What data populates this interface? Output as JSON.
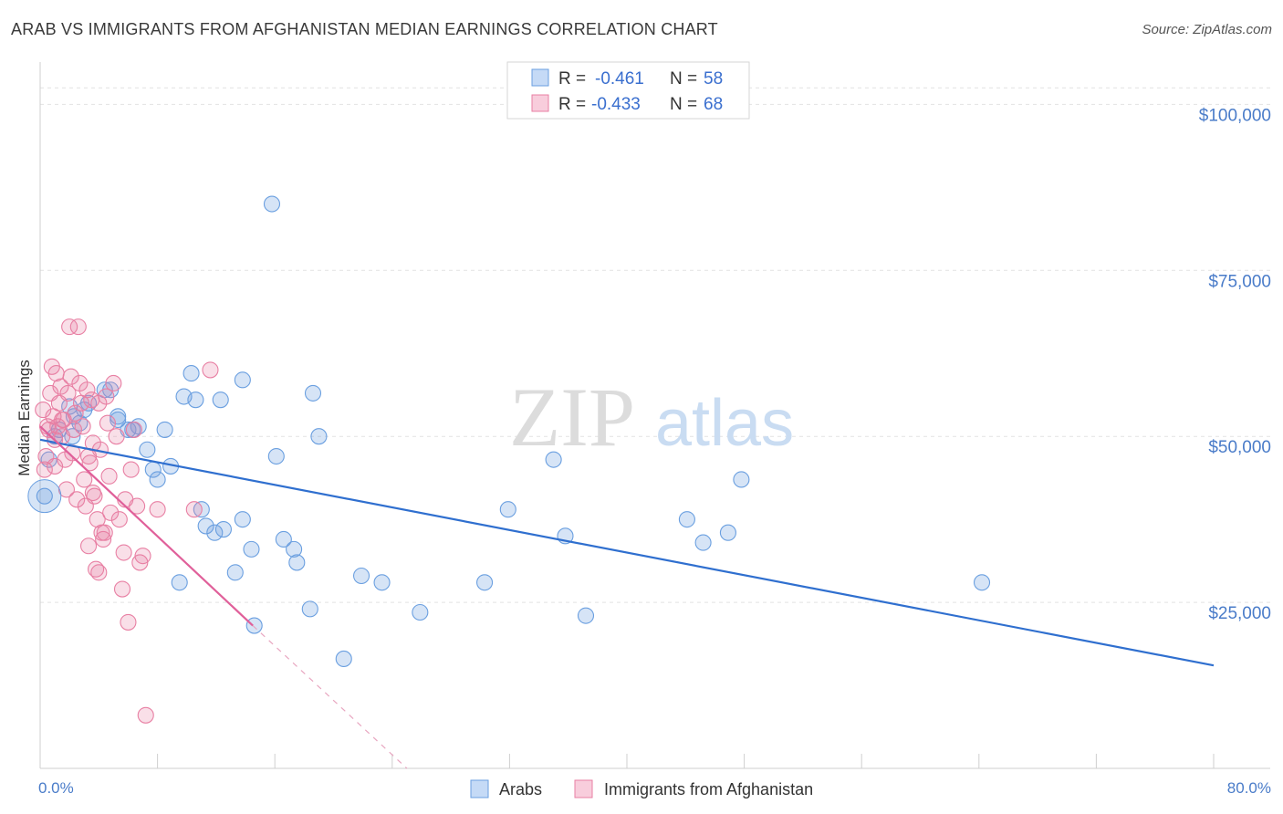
{
  "title": "ARAB VS IMMIGRANTS FROM AFGHANISTAN MEDIAN EARNINGS CORRELATION CHART",
  "source": "Source: ZipAtlas.com",
  "watermark": {
    "zip": "ZIP",
    "atlas": "atlas"
  },
  "legend": {
    "rows": [
      {
        "r_label": "R =",
        "r_value": "-0.461",
        "n_label": "N =",
        "n_value": "58",
        "color": "#6a9fe0"
      },
      {
        "r_label": "R =",
        "r_value": "-0.433",
        "n_label": "N =",
        "n_value": "68",
        "color": "#e87fa3"
      }
    ]
  },
  "bottom_legend": [
    "Arabs",
    "Immigrants from Afghanistan"
  ],
  "chart_data": {
    "type": "scatter",
    "title": "ARAB VS IMMIGRANTS FROM AFGHANISTAN MEDIAN EARNINGS CORRELATION CHART",
    "xlabel": "",
    "ylabel": "Median Earnings",
    "xlim": [
      0,
      80
    ],
    "ylim": [
      0,
      105000
    ],
    "x_tick_labels": [
      "0.0%",
      "80.0%"
    ],
    "y_ticks": [
      25000,
      50000,
      75000,
      100000
    ],
    "y_tick_labels": [
      "$25,000",
      "$50,000",
      "$75,000",
      "$100,000"
    ],
    "grid": true,
    "legend_position": "top-center",
    "series": [
      {
        "name": "Arabs",
        "color": "#6a9fe0",
        "trend": {
          "x": [
            0,
            80
          ],
          "y": [
            49500,
            15500
          ]
        },
        "points": [
          [
            0.3,
            41000
          ],
          [
            0.6,
            46500
          ],
          [
            1.0,
            50000
          ],
          [
            1.3,
            51000
          ],
          [
            2.0,
            54500
          ],
          [
            2.3,
            53000
          ],
          [
            2.7,
            52000
          ],
          [
            3.3,
            55000
          ],
          [
            4.4,
            57000
          ],
          [
            4.8,
            57000
          ],
          [
            5.3,
            53000
          ],
          [
            5.3,
            52500
          ],
          [
            6.0,
            51000
          ],
          [
            6.7,
            51500
          ],
          [
            6.3,
            51000
          ],
          [
            7.3,
            48000
          ],
          [
            7.7,
            45000
          ],
          [
            8.0,
            43500
          ],
          [
            8.5,
            51000
          ],
          [
            8.9,
            45500
          ],
          [
            9.5,
            28000
          ],
          [
            9.8,
            56000
          ],
          [
            10.3,
            59500
          ],
          [
            10.6,
            55500
          ],
          [
            11.0,
            39000
          ],
          [
            11.3,
            36500
          ],
          [
            11.9,
            35500
          ],
          [
            12.3,
            55500
          ],
          [
            12.5,
            36000
          ],
          [
            13.3,
            29500
          ],
          [
            13.8,
            58500
          ],
          [
            13.8,
            37500
          ],
          [
            14.4,
            33000
          ],
          [
            14.6,
            21500
          ],
          [
            15.8,
            85000
          ],
          [
            16.1,
            47000
          ],
          [
            16.6,
            34500
          ],
          [
            17.3,
            33000
          ],
          [
            17.5,
            31000
          ],
          [
            18.4,
            24000
          ],
          [
            18.6,
            56500
          ],
          [
            19.0,
            50000
          ],
          [
            20.7,
            16500
          ],
          [
            21.9,
            29000
          ],
          [
            23.3,
            28000
          ],
          [
            25.9,
            23500
          ],
          [
            30.3,
            28000
          ],
          [
            31.9,
            39000
          ],
          [
            35.0,
            46500
          ],
          [
            35.8,
            35000
          ],
          [
            37.2,
            23000
          ],
          [
            44.1,
            37500
          ],
          [
            45.2,
            34000
          ],
          [
            46.9,
            35500
          ],
          [
            47.8,
            43500
          ],
          [
            64.2,
            28000
          ],
          [
            2.2,
            50000
          ],
          [
            3.0,
            54000
          ]
        ]
      },
      {
        "name": "Immigrants from Afghanistan",
        "color": "#e87fa3",
        "trend": {
          "x": [
            0,
            14.5
          ],
          "y": [
            51500,
            21500
          ]
        },
        "trend_extension": {
          "x": [
            14.5,
            25
          ],
          "y": [
            21500,
            0
          ]
        },
        "points": [
          [
            0.2,
            54000
          ],
          [
            0.3,
            45000
          ],
          [
            0.4,
            47000
          ],
          [
            0.6,
            51000
          ],
          [
            0.7,
            56500
          ],
          [
            0.8,
            60500
          ],
          [
            0.9,
            53000
          ],
          [
            1.0,
            49500
          ],
          [
            1.1,
            59500
          ],
          [
            1.2,
            51500
          ],
          [
            1.3,
            55000
          ],
          [
            1.4,
            57500
          ],
          [
            1.5,
            50000
          ],
          [
            1.6,
            52500
          ],
          [
            1.7,
            46500
          ],
          [
            1.8,
            42000
          ],
          [
            1.9,
            56500
          ],
          [
            2.0,
            66500
          ],
          [
            2.1,
            59000
          ],
          [
            2.2,
            47500
          ],
          [
            2.4,
            53500
          ],
          [
            2.5,
            40500
          ],
          [
            2.6,
            66500
          ],
          [
            2.7,
            58000
          ],
          [
            2.8,
            55000
          ],
          [
            2.9,
            51500
          ],
          [
            3.0,
            43500
          ],
          [
            3.1,
            39500
          ],
          [
            3.2,
            57000
          ],
          [
            3.3,
            33500
          ],
          [
            3.4,
            46000
          ],
          [
            3.5,
            55500
          ],
          [
            3.6,
            49000
          ],
          [
            3.7,
            41000
          ],
          [
            3.8,
            30000
          ],
          [
            3.9,
            37500
          ],
          [
            4.0,
            29500
          ],
          [
            4.1,
            48000
          ],
          [
            4.2,
            35500
          ],
          [
            4.3,
            34500
          ],
          [
            4.4,
            35500
          ],
          [
            4.5,
            56000
          ],
          [
            4.6,
            52000
          ],
          [
            4.7,
            44000
          ],
          [
            4.8,
            38500
          ],
          [
            5.0,
            58000
          ],
          [
            5.2,
            50000
          ],
          [
            5.4,
            37500
          ],
          [
            5.6,
            27000
          ],
          [
            5.7,
            32500
          ],
          [
            5.8,
            40500
          ],
          [
            6.0,
            22000
          ],
          [
            6.2,
            45000
          ],
          [
            6.4,
            51000
          ],
          [
            6.6,
            39500
          ],
          [
            6.8,
            31000
          ],
          [
            7.0,
            32000
          ],
          [
            7.2,
            8000
          ],
          [
            8.0,
            39000
          ],
          [
            10.5,
            39000
          ],
          [
            11.6,
            60000
          ],
          [
            0.5,
            51500
          ],
          [
            1.0,
            45500
          ],
          [
            1.5,
            52500
          ],
          [
            2.3,
            51000
          ],
          [
            3.3,
            47000
          ],
          [
            4.0,
            55000
          ],
          [
            3.6,
            41500
          ]
        ]
      }
    ]
  }
}
